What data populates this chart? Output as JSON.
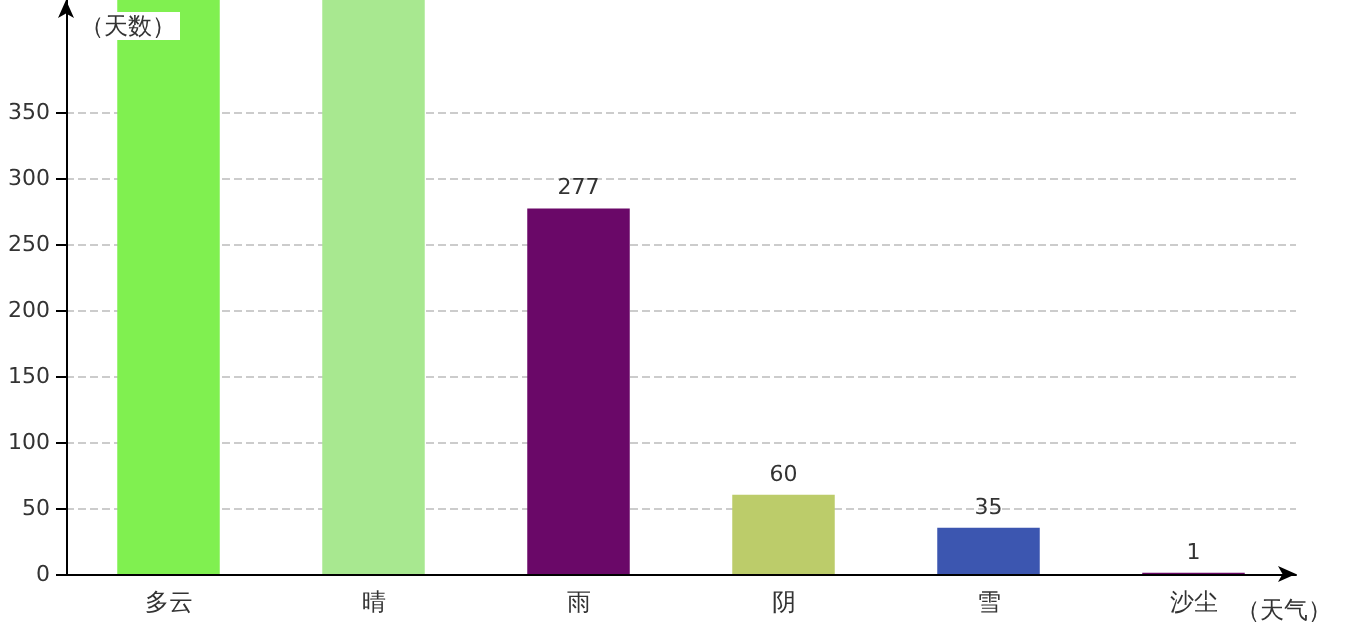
{
  "chart_data": {
    "type": "bar",
    "xlabel": "（天气）",
    "ylabel": "（天数）",
    "categories": [
      "多云",
      "晴",
      "雨",
      "阴",
      "雪",
      "沙尘"
    ],
    "values": [
      435,
      435,
      277,
      60,
      35,
      1
    ],
    "value_labels": [
      null,
      null,
      "277",
      "60",
      "35",
      "1"
    ],
    "colors": [
      "#80f050",
      "#a8e890",
      "#6a0868",
      "#bccc6a",
      "#3c56b0",
      "#6a0868"
    ],
    "ylim": [
      0,
      435
    ],
    "yticks": [
      0,
      50,
      100,
      150,
      200,
      250,
      300,
      350
    ],
    "grid": "y"
  }
}
